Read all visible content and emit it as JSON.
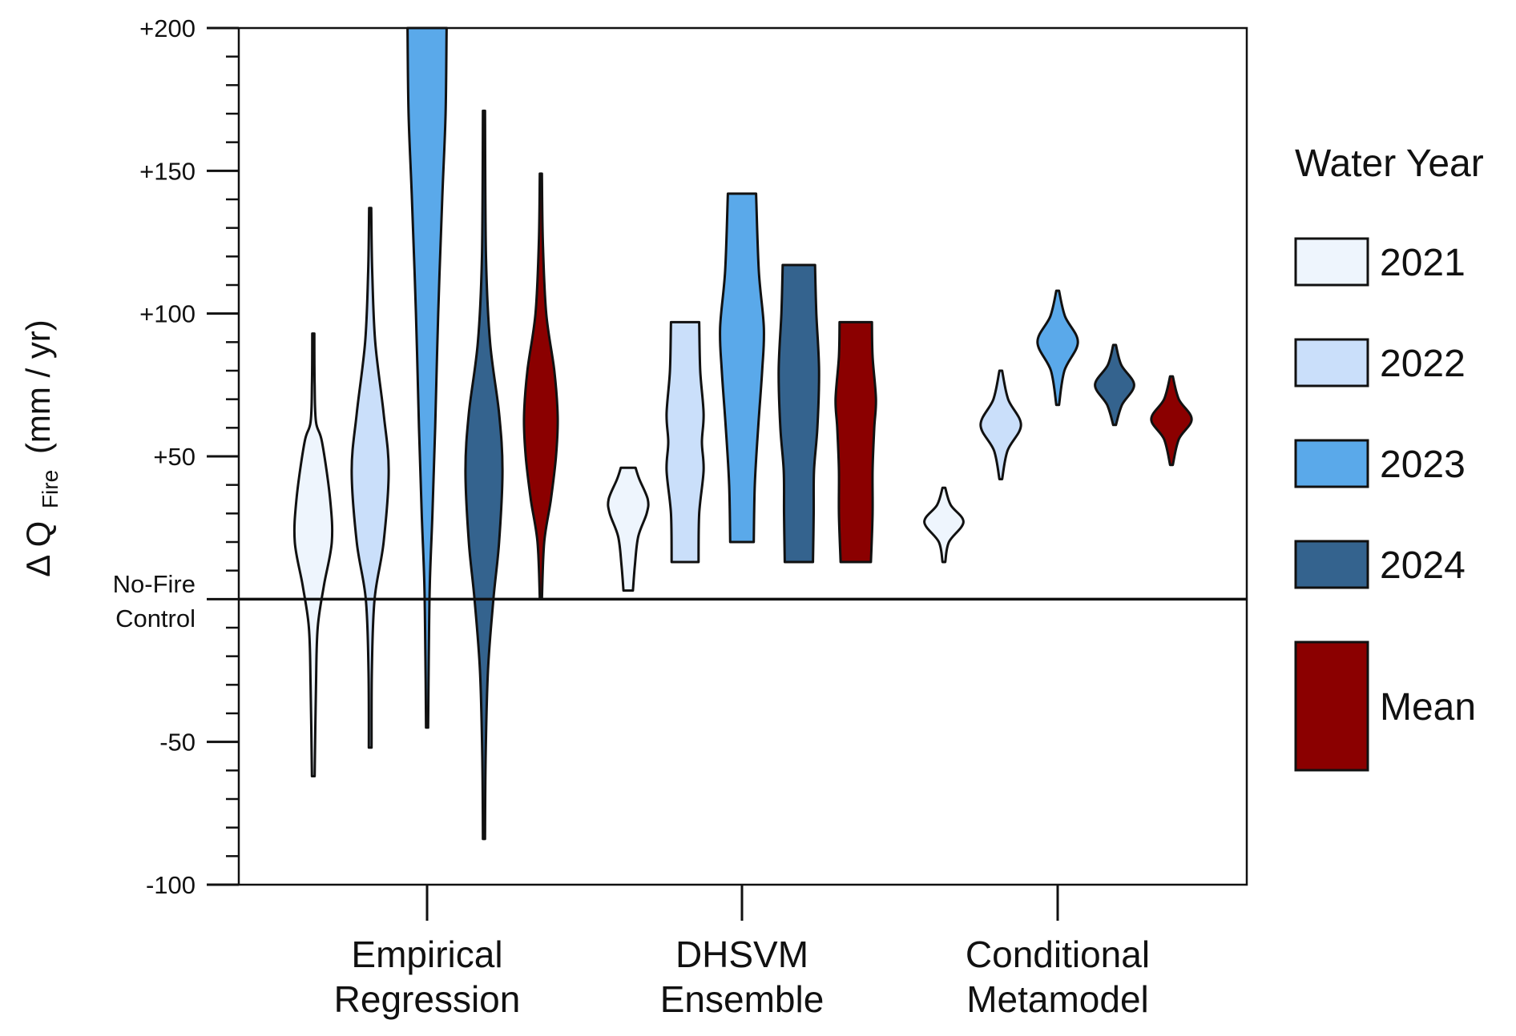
{
  "chart_data": {
    "type": "violin",
    "ylabel_main": "Δ Q",
    "ylabel_sub": "Fire",
    "ylabel_unit": "(mm / yr)",
    "ylim": [
      -100,
      200
    ],
    "y_ticks": [
      {
        "value": 200,
        "label": "+200"
      },
      {
        "value": 150,
        "label": "+150"
      },
      {
        "value": 100,
        "label": "+100"
      },
      {
        "value": 50,
        "label": "+50"
      },
      {
        "value": -50,
        "label": "-50"
      },
      {
        "value": -100,
        "label": "-100"
      }
    ],
    "reference_line": {
      "value": 0,
      "label_line1": "No-Fire",
      "label_line2": "Control"
    },
    "categories": [
      {
        "line1": "Empirical",
        "line2": "Regression"
      },
      {
        "line1": "DHSVM",
        "line2": "Ensemble"
      },
      {
        "line1": "Conditional",
        "line2": "Metamodel"
      }
    ],
    "legend_title": "Water Year",
    "series": [
      {
        "name": "2021",
        "color": "#eef5fd"
      },
      {
        "name": "2022",
        "color": "#cadffa"
      },
      {
        "name": "2023",
        "color": "#5aa9ea"
      },
      {
        "name": "2024",
        "color": "#34638e"
      },
      {
        "name": "Mean",
        "color": "#8b0000"
      }
    ],
    "violins": [
      {
        "category": 0,
        "series": 0,
        "min": -62,
        "max": 93,
        "profile": [
          [
            -62,
            0.04
          ],
          [
            -30,
            0.08
          ],
          [
            -10,
            0.13
          ],
          [
            5,
            0.32
          ],
          [
            20,
            0.55
          ],
          [
            35,
            0.5
          ],
          [
            55,
            0.26
          ],
          [
            62,
            0.08
          ],
          [
            75,
            0.04
          ],
          [
            93,
            0.03
          ]
        ]
      },
      {
        "category": 0,
        "series": 1,
        "min": -52,
        "max": 137,
        "profile": [
          [
            -52,
            0.04
          ],
          [
            -25,
            0.05
          ],
          [
            0,
            0.13
          ],
          [
            20,
            0.4
          ],
          [
            45,
            0.55
          ],
          [
            65,
            0.4
          ],
          [
            90,
            0.15
          ],
          [
            115,
            0.06
          ],
          [
            137,
            0.03
          ]
        ]
      },
      {
        "category": 0,
        "series": 2,
        "min": -45,
        "max": 200,
        "profile": [
          [
            -45,
            0.03
          ],
          [
            -20,
            0.05
          ],
          [
            5,
            0.08
          ],
          [
            30,
            0.16
          ],
          [
            60,
            0.24
          ],
          [
            100,
            0.33
          ],
          [
            140,
            0.45
          ],
          [
            170,
            0.55
          ],
          [
            200,
            0.58
          ]
        ]
      },
      {
        "category": 0,
        "series": 3,
        "min": -84,
        "max": 171,
        "profile": [
          [
            -84,
            0.03
          ],
          [
            -55,
            0.05
          ],
          [
            -25,
            0.12
          ],
          [
            0,
            0.28
          ],
          [
            20,
            0.45
          ],
          [
            45,
            0.55
          ],
          [
            65,
            0.45
          ],
          [
            90,
            0.18
          ],
          [
            120,
            0.06
          ],
          [
            171,
            0.03
          ]
        ]
      },
      {
        "category": 0,
        "series": 4,
        "min": 0,
        "max": 149,
        "profile": [
          [
            0,
            0.03
          ],
          [
            20,
            0.1
          ],
          [
            35,
            0.3
          ],
          [
            50,
            0.45
          ],
          [
            64,
            0.5
          ],
          [
            80,
            0.4
          ],
          [
            100,
            0.16
          ],
          [
            125,
            0.06
          ],
          [
            149,
            0.03
          ]
        ]
      },
      {
        "category": 1,
        "series": 0,
        "min": 3,
        "max": 46,
        "profile": [
          [
            3,
            0.14
          ],
          [
            12,
            0.2
          ],
          [
            22,
            0.3
          ],
          [
            30,
            0.55
          ],
          [
            35,
            0.58
          ],
          [
            42,
            0.33
          ],
          [
            46,
            0.22
          ]
        ]
      },
      {
        "category": 1,
        "series": 1,
        "min": 13,
        "max": 97,
        "profile": [
          [
            13,
            0.4
          ],
          [
            30,
            0.42
          ],
          [
            45,
            0.55
          ],
          [
            55,
            0.5
          ],
          [
            65,
            0.55
          ],
          [
            80,
            0.45
          ],
          [
            97,
            0.42
          ]
        ]
      },
      {
        "category": 1,
        "series": 2,
        "min": 20,
        "max": 142,
        "profile": [
          [
            20,
            0.35
          ],
          [
            40,
            0.38
          ],
          [
            60,
            0.48
          ],
          [
            80,
            0.6
          ],
          [
            95,
            0.65
          ],
          [
            115,
            0.5
          ],
          [
            142,
            0.42
          ]
        ]
      },
      {
        "category": 1,
        "series": 3,
        "min": 13,
        "max": 117,
        "profile": [
          [
            13,
            0.42
          ],
          [
            30,
            0.44
          ],
          [
            45,
            0.45
          ],
          [
            60,
            0.55
          ],
          [
            80,
            0.6
          ],
          [
            100,
            0.52
          ],
          [
            117,
            0.48
          ]
        ]
      },
      {
        "category": 1,
        "series": 4,
        "min": 13,
        "max": 97,
        "profile": [
          [
            13,
            0.45
          ],
          [
            30,
            0.5
          ],
          [
            45,
            0.5
          ],
          [
            60,
            0.55
          ],
          [
            70,
            0.6
          ],
          [
            85,
            0.5
          ],
          [
            97,
            0.48
          ]
        ]
      },
      {
        "category": 2,
        "series": 0,
        "min": 13,
        "max": 39,
        "profile": [
          [
            13,
            0.04
          ],
          [
            20,
            0.15
          ],
          [
            27,
            0.58
          ],
          [
            33,
            0.2
          ],
          [
            39,
            0.04
          ]
        ]
      },
      {
        "category": 2,
        "series": 1,
        "min": 42,
        "max": 80,
        "profile": [
          [
            42,
            0.04
          ],
          [
            52,
            0.2
          ],
          [
            61,
            0.6
          ],
          [
            70,
            0.22
          ],
          [
            80,
            0.04
          ]
        ]
      },
      {
        "category": 2,
        "series": 2,
        "min": 68,
        "max": 108,
        "profile": [
          [
            68,
            0.04
          ],
          [
            80,
            0.2
          ],
          [
            90,
            0.6
          ],
          [
            99,
            0.22
          ],
          [
            108,
            0.04
          ]
        ]
      },
      {
        "category": 2,
        "series": 3,
        "min": 61,
        "max": 89,
        "profile": [
          [
            61,
            0.04
          ],
          [
            68,
            0.22
          ],
          [
            75,
            0.58
          ],
          [
            82,
            0.2
          ],
          [
            89,
            0.04
          ]
        ]
      },
      {
        "category": 2,
        "series": 4,
        "min": 47,
        "max": 78,
        "profile": [
          [
            47,
            0.04
          ],
          [
            56,
            0.22
          ],
          [
            63,
            0.6
          ],
          [
            70,
            0.22
          ],
          [
            78,
            0.04
          ]
        ]
      }
    ]
  }
}
